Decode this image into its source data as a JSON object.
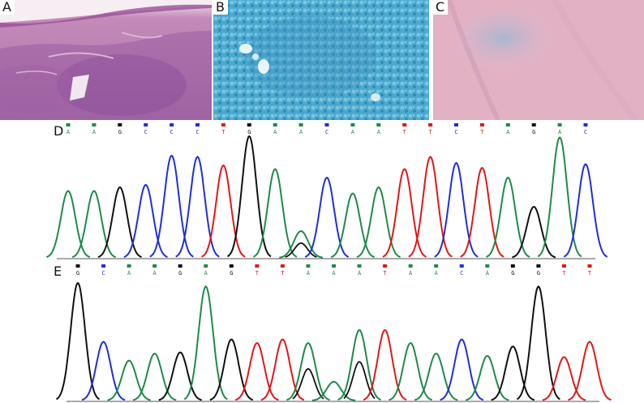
{
  "panels": {
    "a": {
      "label": "A"
    },
    "b": {
      "label": "B"
    },
    "c": {
      "label": "C"
    },
    "d": {
      "label": "D"
    },
    "e": {
      "label": "E"
    }
  },
  "base_colors": {
    "A": "#1e8a4a",
    "C": "#1f2fd6",
    "G": "#111111",
    "T": "#e01818"
  },
  "sequence_d": {
    "bases": [
      "A",
      "A",
      "G",
      "C",
      "C",
      "C",
      "T",
      "G",
      "A",
      "A",
      "C",
      "A",
      "A",
      "T",
      "T",
      "C",
      "T",
      "A",
      "G",
      "A",
      "C"
    ],
    "mixed": [
      false,
      false,
      false,
      false,
      false,
      false,
      false,
      false,
      false,
      true,
      false,
      false,
      false,
      false,
      false,
      false,
      false,
      false,
      false,
      false,
      false
    ],
    "heights": [
      0.55,
      0.55,
      0.58,
      0.6,
      0.84,
      0.83,
      0.76,
      1.0,
      0.73,
      0.22,
      0.66,
      0.53,
      0.58,
      0.73,
      0.83,
      0.78,
      0.74,
      0.66,
      0.42,
      0.99,
      0.77
    ]
  },
  "sequence_e": {
    "bases": [
      "G",
      "C",
      "A",
      "A",
      "G",
      "A",
      "G",
      "T",
      "T",
      "A",
      "A",
      "A",
      "T",
      "A",
      "A",
      "C",
      "A",
      "G",
      "G",
      "T",
      "T"
    ],
    "mixed": [
      false,
      false,
      false,
      false,
      false,
      false,
      false,
      false,
      false,
      true,
      false,
      true,
      false,
      false,
      false,
      false,
      false,
      false,
      false,
      false,
      false
    ],
    "heights": [
      1.0,
      0.5,
      0.34,
      0.4,
      0.41,
      0.97,
      0.52,
      0.49,
      0.52,
      0.49,
      0.16,
      0.6,
      0.6,
      0.49,
      0.4,
      0.52,
      0.38,
      0.46,
      0.97,
      0.37,
      0.5
    ]
  }
}
